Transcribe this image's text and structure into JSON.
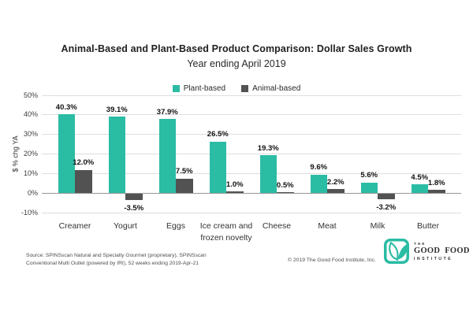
{
  "chart_data": {
    "type": "bar",
    "title": "Animal-Based and Plant-Based Product Comparison: Dollar Sales Growth",
    "subtitle": "Year ending April 2019",
    "ylabel": "$ % chg YA",
    "xlabel": "",
    "ylim": [
      -10,
      50
    ],
    "yticks": [
      50,
      40,
      30,
      20,
      10,
      0,
      -10
    ],
    "ytick_labels": [
      "50%",
      "40%",
      "30%",
      "20%",
      "10%",
      "0%",
      "-10%"
    ],
    "grid": true,
    "legend_position": "top-center",
    "categories": [
      "Creamer",
      "Yogurt",
      "Eggs",
      "Ice cream and frozen novelty",
      "Cheese",
      "Meat",
      "Milk",
      "Butter"
    ],
    "series": [
      {
        "name": "Plant-based",
        "color": "#2BBCA4",
        "values": [
          40.3,
          39.1,
          37.9,
          26.5,
          19.3,
          9.6,
          5.6,
          4.5
        ],
        "labels": [
          "40.3%",
          "39.1%",
          "37.9%",
          "26.5%",
          "19.3%",
          "9.6%",
          "5.6%",
          "4.5%"
        ]
      },
      {
        "name": "Animal-based",
        "color": "#525252",
        "values": [
          12.0,
          -3.5,
          7.5,
          1.0,
          0.5,
          2.2,
          -3.2,
          1.8
        ],
        "labels": [
          "12.0%",
          "-3.5%",
          "7.5%",
          "1.0%",
          "0.5%",
          "2.2%",
          "-3.2%",
          "1.8%"
        ]
      }
    ]
  },
  "footer": {
    "source_line1": "Source: SPINSscan Natural and Specialty Gourmet (proprietary), SPINSscan",
    "source_line2": "Conventional Multi Outlet (powered by IRI), 52 weeks ending 2019-Apr-21",
    "copyright": "© 2019 The Good Food Institute, Inc.",
    "logo": {
      "line1": "THE",
      "line2": "GOOD FOOD",
      "line3": "INSTITUTE"
    }
  }
}
